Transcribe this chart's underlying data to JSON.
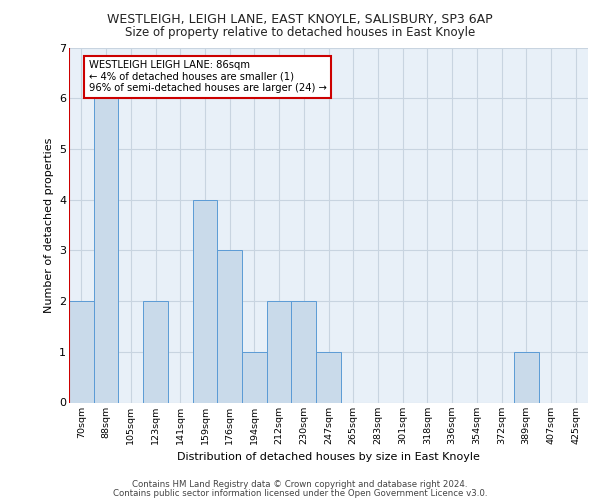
{
  "title_line1": "WESTLEIGH, LEIGH LANE, EAST KNOYLE, SALISBURY, SP3 6AP",
  "title_line2": "Size of property relative to detached houses in East Knoyle",
  "xlabel": "Distribution of detached houses by size in East Knoyle",
  "ylabel": "Number of detached properties",
  "footer_line1": "Contains HM Land Registry data © Crown copyright and database right 2024.",
  "footer_line2": "Contains public sector information licensed under the Open Government Licence v3.0.",
  "categories": [
    "70sqm",
    "88sqm",
    "105sqm",
    "123sqm",
    "141sqm",
    "159sqm",
    "176sqm",
    "194sqm",
    "212sqm",
    "230sqm",
    "247sqm",
    "265sqm",
    "283sqm",
    "301sqm",
    "318sqm",
    "336sqm",
    "354sqm",
    "372sqm",
    "389sqm",
    "407sqm",
    "425sqm"
  ],
  "values": [
    2,
    6,
    0,
    2,
    0,
    4,
    3,
    1,
    2,
    2,
    1,
    0,
    0,
    0,
    0,
    0,
    0,
    0,
    1,
    0,
    0
  ],
  "bar_color": "#c9daea",
  "bar_edge_color": "#5b9bd5",
  "annotation_title": "WESTLEIGH LEIGH LANE: 86sqm",
  "annotation_line2": "← 4% of detached houses are smaller (1)",
  "annotation_line3": "96% of semi-detached houses are larger (24) →",
  "annotation_box_color": "#ffffff",
  "annotation_box_edge": "#cc0000",
  "subject_line_color": "#cc0000",
  "ylim": [
    0,
    7
  ],
  "yticks": [
    0,
    1,
    2,
    3,
    4,
    5,
    6,
    7
  ],
  "grid_color": "#c8d4e0",
  "plot_bg_color": "#e8f0f8"
}
